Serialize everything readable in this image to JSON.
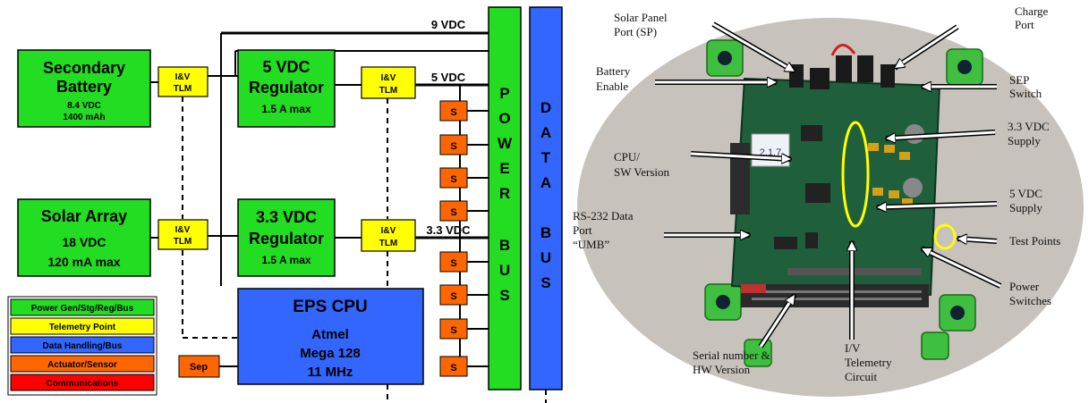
{
  "colors": {
    "power": "#22dd22",
    "telemetry": "#ffff00",
    "data": "#3366ff",
    "actuator": "#ff6600",
    "comm": "#ff0000",
    "board": "#1f5f3c",
    "photo_bg": "#c9c4bd"
  },
  "diagram": {
    "secondary_battery": {
      "title1": "Secondary",
      "title2": "Battery",
      "spec1": "8.4 VDC",
      "spec2": "1400 mAh"
    },
    "solar_array": {
      "title": "Solar Array",
      "spec1": "18 VDC",
      "spec2": "120 mA max"
    },
    "reg5": {
      "title1": "5 VDC",
      "title2": "Regulator",
      "spec": "1.5 A max"
    },
    "reg33": {
      "title1": "3.3 VDC",
      "title2": "Regulator",
      "spec": "1.5 A max"
    },
    "tlm_line1": "I&V",
    "tlm_line2": "TLM",
    "bus_9v": "9 VDC",
    "bus_5v": "5 VDC",
    "bus_33v": "3.3 VDC",
    "switch_label": "S",
    "power_bus_letters": [
      "P",
      "O",
      "W",
      "E",
      "R",
      "",
      "B",
      "U",
      "S"
    ],
    "data_bus_letters": [
      "D",
      "A",
      "T",
      "A",
      "",
      "B",
      "U",
      "S"
    ],
    "cpu": {
      "title": "EPS CPU",
      "line1": "Atmel",
      "line2": "Mega 128",
      "line3": "11 MHz"
    },
    "sep_label": "Sep"
  },
  "legend": [
    {
      "label": "Power Gen/Stg/Reg/Bus",
      "color": "#22dd22",
      "text_color": "#000000"
    },
    {
      "label": "Telemetry Point",
      "color": "#ffff00",
      "text_color": "#000000"
    },
    {
      "label": "Data Handling/Bus",
      "color": "#3366ff",
      "text_color": "#000000"
    },
    {
      "label": "Actuator/Sensor",
      "color": "#ff6600",
      "text_color": "#000000"
    },
    {
      "label": "Communications",
      "color": "#ff0000",
      "text_color": "#000000"
    }
  ],
  "photo": {
    "version_text": "2.1.7",
    "labels": {
      "solar_panel_1": "Solar Panel",
      "solar_panel_2": "Port (SP)",
      "charge_1": "Charge",
      "charge_2": "Port",
      "battery_1": "Battery",
      "battery_2": "Enable",
      "sep_1": "SEP",
      "sep_2": "Switch",
      "supply33_1": "3.3 VDC",
      "supply33_2": "Supply",
      "cpu_1": "CPU/",
      "cpu_2": "SW Version",
      "supply5_1": "5 VDC",
      "supply5_2": "Supply",
      "rs232_1": "RS-232 Data",
      "rs232_2": "Port",
      "rs232_3": "“UMB”",
      "test_points": "Test Points",
      "power_sw_1": "Power",
      "power_sw_2": "Switches",
      "serial_1": "Serial number &",
      "serial_2": "HW Version",
      "iv_1": "I/V",
      "iv_2": "Telemetry",
      "iv_3": "Circuit"
    }
  }
}
